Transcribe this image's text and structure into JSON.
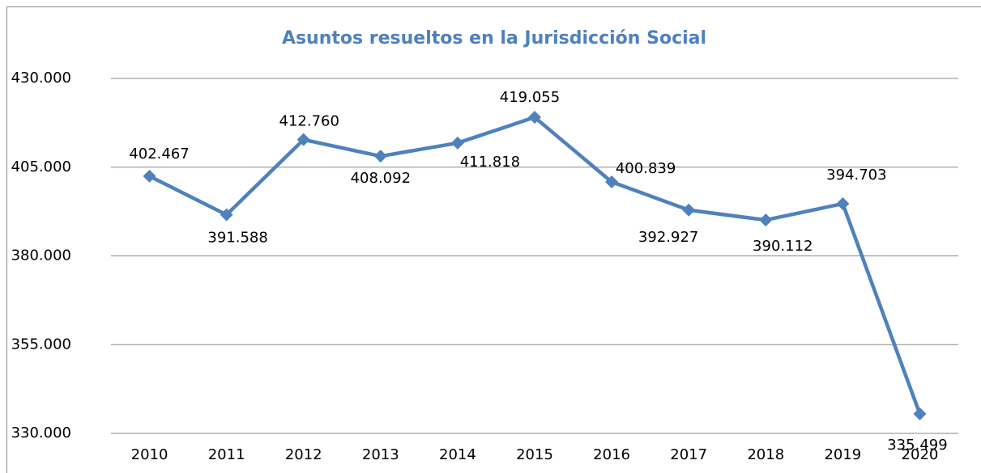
{
  "chart_data": {
    "type": "line",
    "title": "Asuntos resueltos en la Jurisdicción Social",
    "categories": [
      "2010",
      "2011",
      "2012",
      "2013",
      "2014",
      "2015",
      "2016",
      "2017",
      "2018",
      "2019",
      "2020"
    ],
    "series": [
      {
        "name": "Asuntos resueltos",
        "color": "#4f81bd",
        "values": [
          402467,
          391588,
          412760,
          408092,
          411818,
          419055,
          400839,
          392927,
          390112,
          394703,
          335499
        ],
        "value_labels": [
          "402.467",
          "391.588",
          "412.760",
          "408.092",
          "411.818",
          "419.055",
          "400.839",
          "392.927",
          "390.112",
          "394.703",
          "335.499"
        ]
      }
    ],
    "ylim": [
      330000,
      430000
    ],
    "yticks": [
      {
        "value": 330000,
        "label": "330.000"
      },
      {
        "value": 355000,
        "label": "355.000"
      },
      {
        "value": 380000,
        "label": "380.000"
      },
      {
        "value": 405000,
        "label": "405.000"
      },
      {
        "value": 430000,
        "label": "430.000"
      }
    ],
    "grid": true
  }
}
